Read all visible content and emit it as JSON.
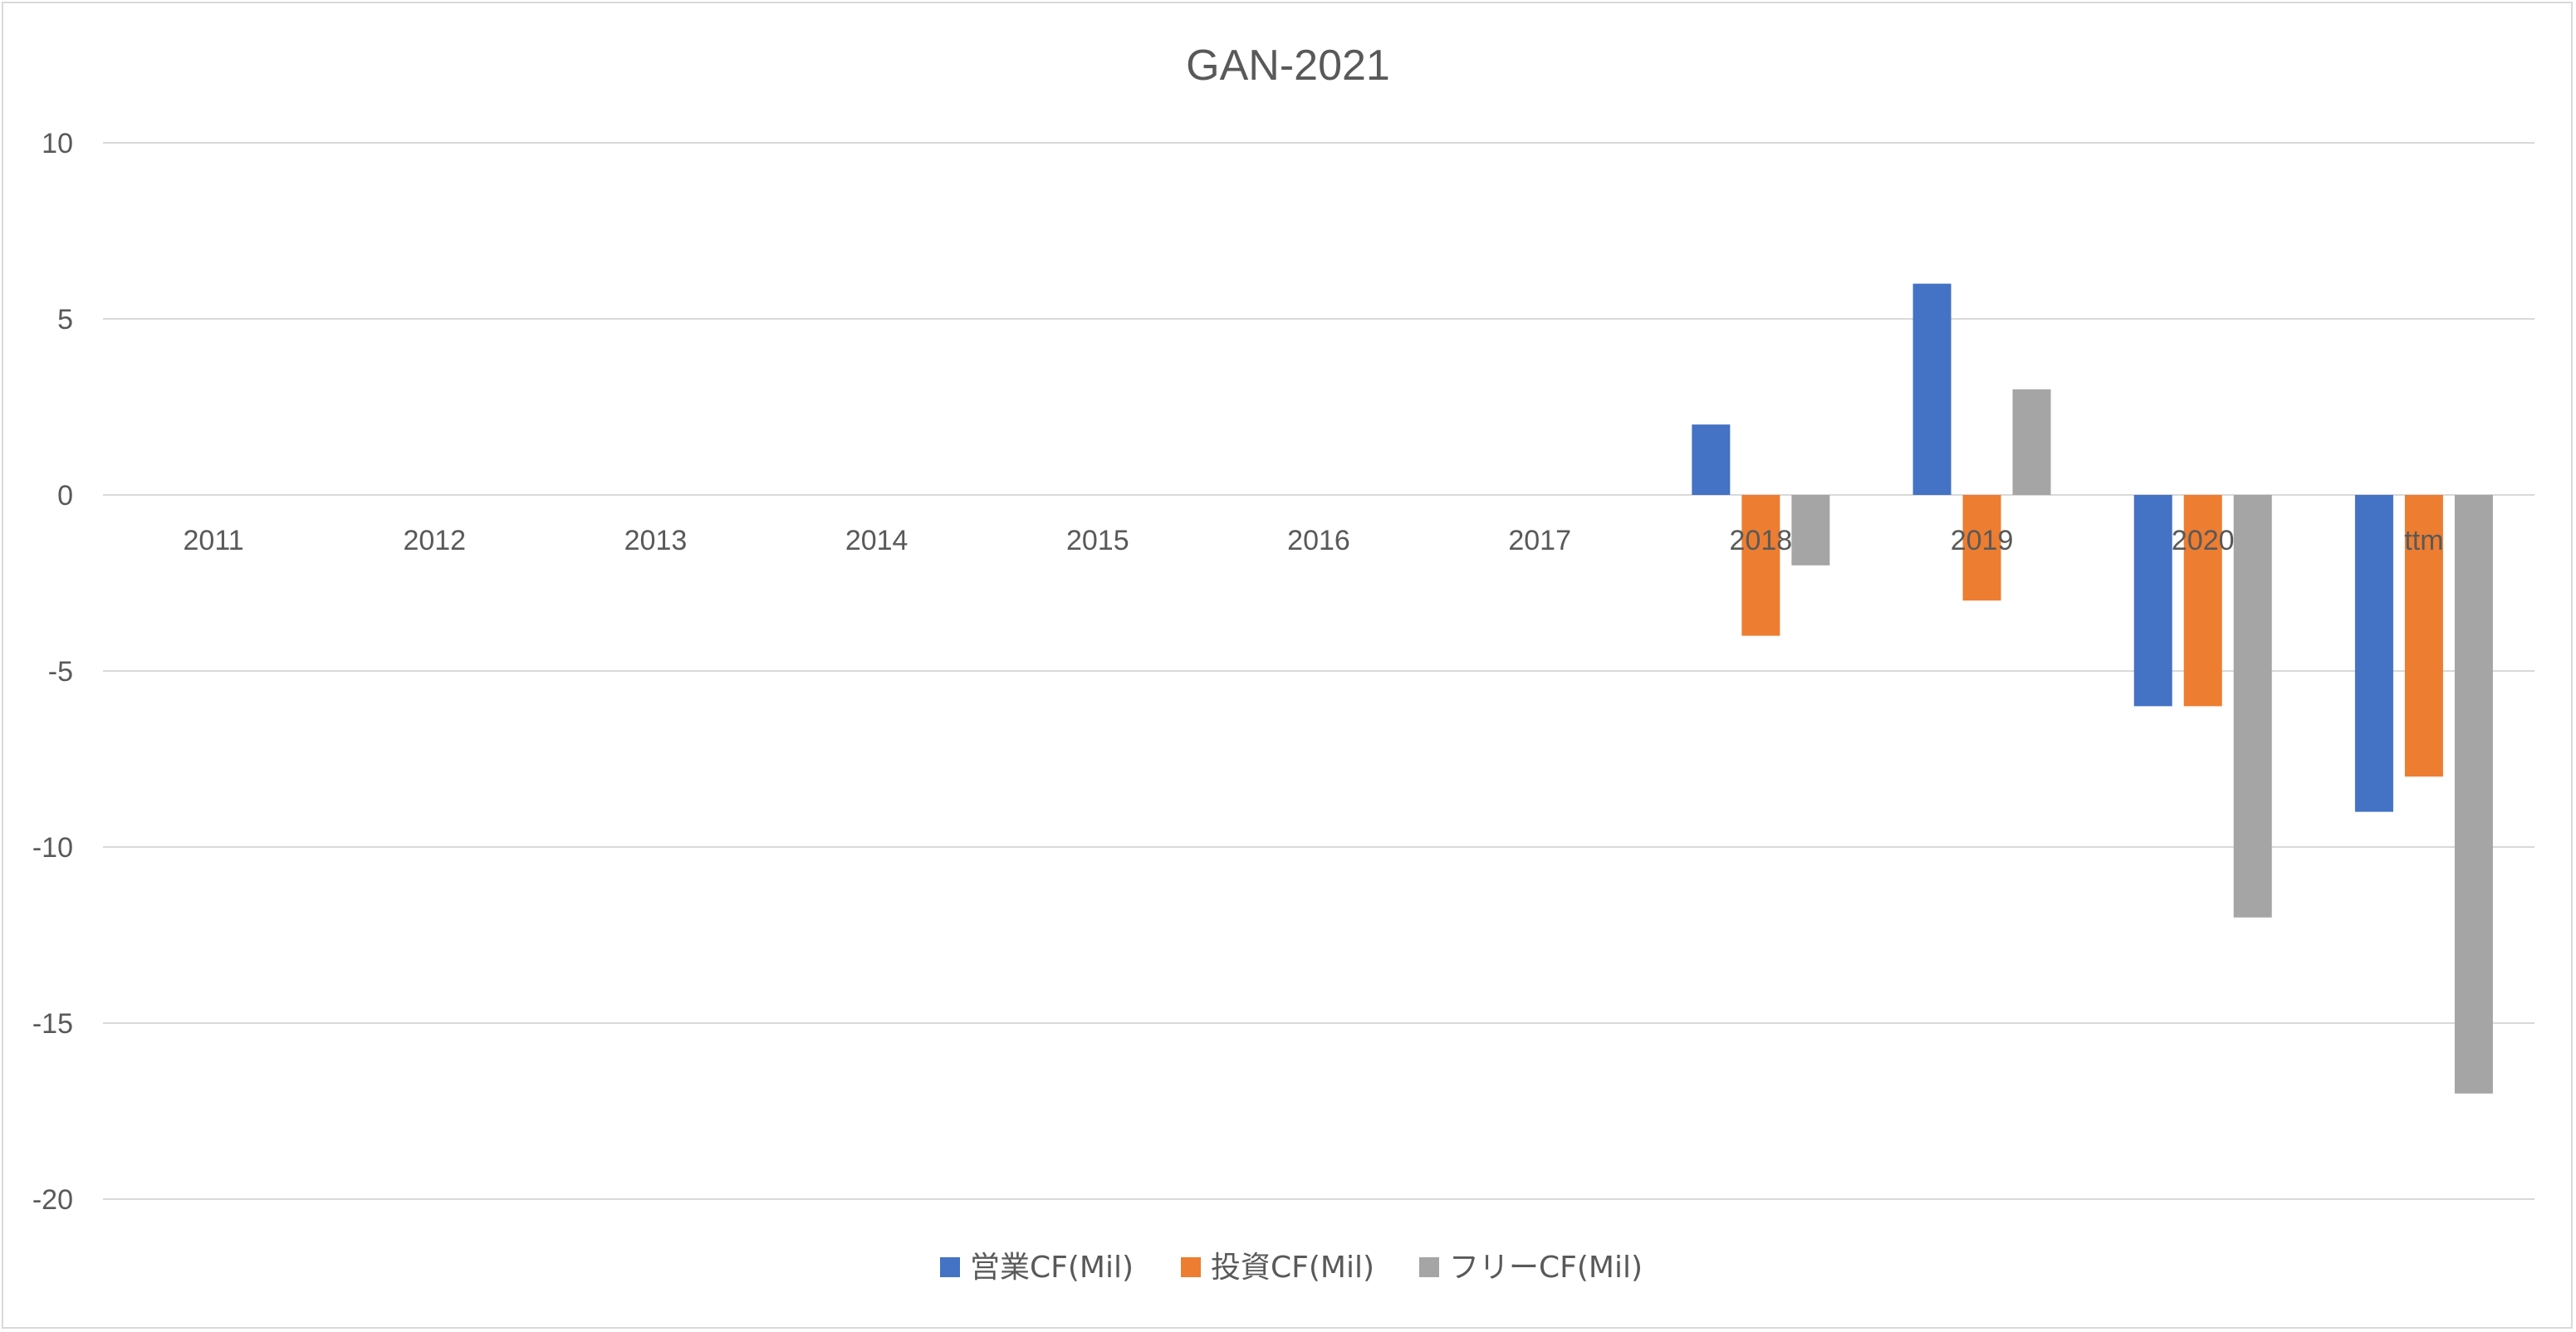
{
  "chart_data": {
    "type": "bar",
    "title": "GAN-2021",
    "categories": [
      "2011",
      "2012",
      "2013",
      "2014",
      "2015",
      "2016",
      "2017",
      "2018",
      "2019",
      "2020",
      "ttm"
    ],
    "series": [
      {
        "name": "営業CF(Mil)",
        "color": "#4472c4",
        "values": [
          null,
          null,
          null,
          null,
          null,
          null,
          null,
          2,
          6,
          -6,
          -9
        ]
      },
      {
        "name": "投資CF(Mil)",
        "color": "#ed7d31",
        "values": [
          null,
          null,
          null,
          null,
          null,
          null,
          null,
          -4,
          -3,
          -6,
          -8
        ]
      },
      {
        "name": "フリーCF(Mil)",
        "color": "#a5a5a5",
        "values": [
          null,
          null,
          null,
          null,
          null,
          null,
          null,
          -2,
          3,
          -12,
          -17
        ]
      }
    ],
    "ylim": [
      -20,
      10
    ],
    "yticks": [
      10,
      5,
      0,
      -5,
      -10,
      -15,
      -20
    ],
    "grid": true,
    "legend_position": "bottom",
    "gridline_color": "#d9d9d9",
    "text_color": "#595959"
  }
}
